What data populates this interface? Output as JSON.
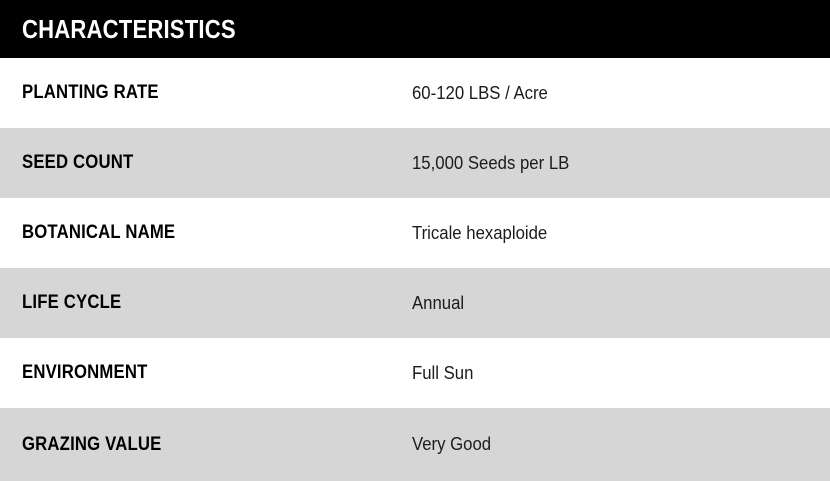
{
  "header": {
    "title": "CHARACTERISTICS"
  },
  "table": {
    "rows": [
      {
        "label": "PLANTING RATE",
        "value": "60-120 LBS / Acre"
      },
      {
        "label": "SEED COUNT",
        "value": "15,000 Seeds per LB"
      },
      {
        "label": "BOTANICAL NAME",
        "value": "Tricale hexaploide"
      },
      {
        "label": "LIFE CYCLE",
        "value": "Annual"
      },
      {
        "label": "ENVIRONMENT",
        "value": "Full Sun"
      },
      {
        "label": "GRAZING VALUE",
        "value": "Very Good"
      }
    ]
  },
  "colors": {
    "header_bg": "#000000",
    "header_text": "#ffffff",
    "row_bg": "#ffffff",
    "row_alt_bg": "#d6d6d6",
    "label_color": "#000000",
    "value_color": "#1c1c1c"
  }
}
